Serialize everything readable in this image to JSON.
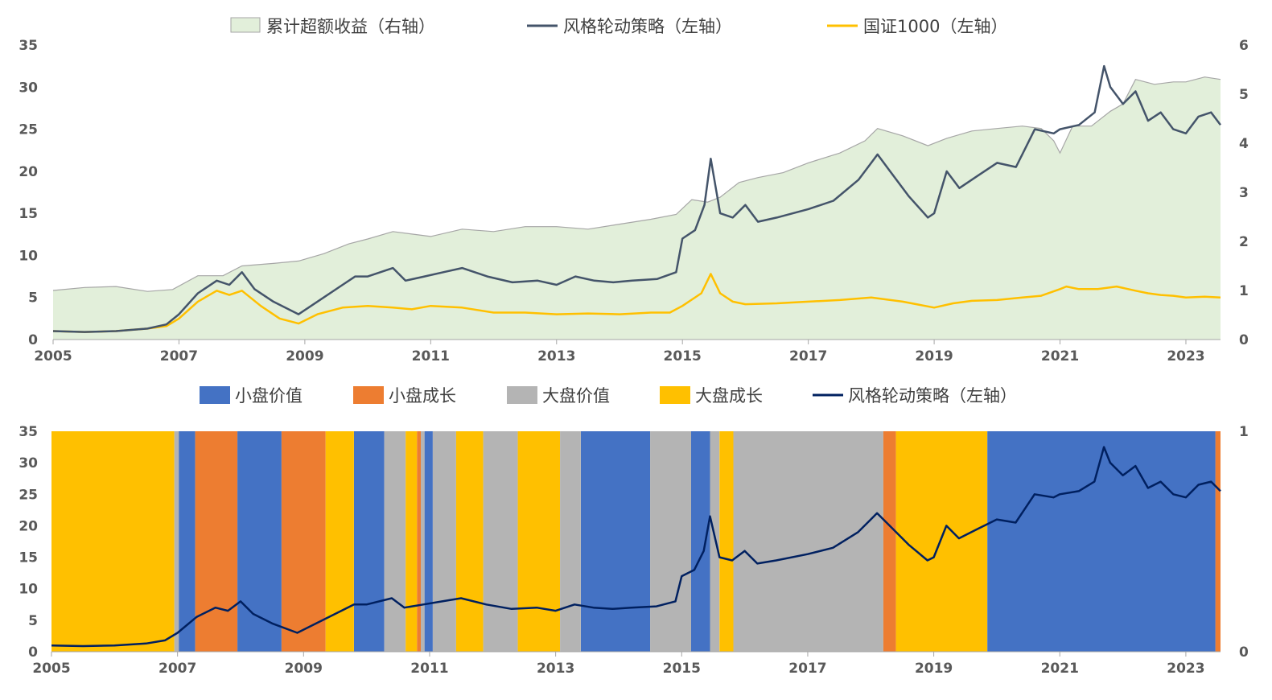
{
  "chart_data": [
    {
      "type": "line",
      "title": "",
      "xlabel": "",
      "ylabel": "",
      "legend_position": "top",
      "x_ticks": [
        "2005",
        "2007",
        "2009",
        "2011",
        "2013",
        "2015",
        "2017",
        "2019",
        "2021",
        "2023"
      ],
      "y_left_ticks": [
        "0",
        "5",
        "10",
        "15",
        "20",
        "25",
        "30",
        "35"
      ],
      "y_right_ticks": [
        "0",
        "1",
        "2",
        "3",
        "4",
        "5",
        "6"
      ],
      "ylim_left": [
        0,
        35
      ],
      "ylim_right": [
        0,
        6
      ],
      "xlim": [
        2005.0,
        2023.55
      ],
      "colors": {
        "excess": "#e2efda",
        "excess_line": "#a6a6a6",
        "strategy": "#44546a",
        "index": "#ffc000"
      },
      "series": [
        {
          "name": "累计超额收益（右轴）",
          "axis": "right",
          "x": [
            2005.0,
            2005.5,
            2006.0,
            2006.5,
            2006.9,
            2007.3,
            2007.7,
            2008.0,
            2008.5,
            2008.9,
            2009.3,
            2009.7,
            2010.0,
            2010.4,
            2010.7,
            2011.0,
            2011.5,
            2012.0,
            2012.5,
            2013.0,
            2013.5,
            2014.0,
            2014.5,
            2014.9,
            2015.15,
            2015.4,
            2015.6,
            2015.9,
            2016.2,
            2016.6,
            2017.0,
            2017.5,
            2017.9,
            2018.1,
            2018.5,
            2018.9,
            2019.2,
            2019.6,
            2020.0,
            2020.4,
            2020.7,
            2020.9,
            2021.0,
            2021.2,
            2021.5,
            2021.8,
            2022.0,
            2022.2,
            2022.5,
            2022.8,
            2023.0,
            2023.3,
            2023.55
          ],
          "y": [
            1.0,
            1.06,
            1.08,
            0.98,
            1.02,
            1.3,
            1.3,
            1.5,
            1.55,
            1.6,
            1.75,
            1.95,
            2.05,
            2.2,
            2.15,
            2.1,
            2.25,
            2.2,
            2.3,
            2.3,
            2.25,
            2.35,
            2.45,
            2.55,
            2.85,
            2.8,
            2.9,
            3.2,
            3.3,
            3.4,
            3.6,
            3.8,
            4.05,
            4.3,
            4.15,
            3.95,
            4.1,
            4.25,
            4.3,
            4.35,
            4.3,
            4.05,
            3.8,
            4.35,
            4.35,
            4.65,
            4.8,
            5.3,
            5.2,
            5.25,
            5.25,
            5.35,
            5.3
          ]
        },
        {
          "name": "风格轮动策略（左轴）",
          "axis": "left",
          "x": [
            2005.0,
            2005.5,
            2006.0,
            2006.5,
            2006.8,
            2007.0,
            2007.3,
            2007.6,
            2007.8,
            2008.0,
            2008.2,
            2008.5,
            2008.9,
            2009.2,
            2009.6,
            2009.8,
            2010.0,
            2010.4,
            2010.6,
            2010.9,
            2011.2,
            2011.5,
            2011.9,
            2012.3,
            2012.7,
            2013.0,
            2013.3,
            2013.6,
            2013.9,
            2014.2,
            2014.6,
            2014.9,
            2015.0,
            2015.2,
            2015.35,
            2015.45,
            2015.6,
            2015.8,
            2016.0,
            2016.2,
            2016.5,
            2017.0,
            2017.4,
            2017.8,
            2018.0,
            2018.1,
            2018.3,
            2018.6,
            2018.9,
            2019.0,
            2019.2,
            2019.4,
            2019.7,
            2020.0,
            2020.3,
            2020.6,
            2020.9,
            2021.0,
            2021.3,
            2021.55,
            2021.7,
            2021.8,
            2022.0,
            2022.2,
            2022.4,
            2022.6,
            2022.8,
            2023.0,
            2023.2,
            2023.4,
            2023.55
          ],
          "y": [
            1.0,
            0.9,
            1.0,
            1.3,
            1.8,
            3.0,
            5.5,
            7.0,
            6.5,
            8.0,
            6.0,
            4.5,
            3.0,
            4.5,
            6.5,
            7.5,
            7.5,
            8.5,
            7.0,
            7.5,
            8.0,
            8.5,
            7.5,
            6.8,
            7.0,
            6.5,
            7.5,
            7.0,
            6.8,
            7.0,
            7.2,
            8.0,
            12.0,
            13.0,
            16.0,
            21.5,
            15.0,
            14.5,
            16.0,
            14.0,
            14.5,
            15.5,
            16.5,
            19.0,
            21.0,
            22.0,
            20.0,
            17.0,
            14.5,
            15.0,
            20.0,
            18.0,
            19.5,
            21.0,
            20.5,
            25.0,
            24.5,
            25.0,
            25.5,
            27.0,
            32.5,
            30.0,
            28.0,
            29.5,
            26.0,
            27.0,
            25.0,
            24.5,
            26.5,
            27.0,
            25.5
          ]
        },
        {
          "name": "国证1000（左轴）",
          "axis": "left",
          "x": [
            2005.0,
            2005.5,
            2006.0,
            2006.5,
            2006.8,
            2007.0,
            2007.3,
            2007.6,
            2007.8,
            2008.0,
            2008.3,
            2008.6,
            2008.9,
            2009.2,
            2009.6,
            2010.0,
            2010.4,
            2010.7,
            2011.0,
            2011.5,
            2012.0,
            2012.5,
            2013.0,
            2013.5,
            2014.0,
            2014.5,
            2014.8,
            2015.0,
            2015.3,
            2015.45,
            2015.6,
            2015.8,
            2016.0,
            2016.5,
            2017.0,
            2017.5,
            2018.0,
            2018.5,
            2019.0,
            2019.3,
            2019.6,
            2020.0,
            2020.4,
            2020.7,
            2021.0,
            2021.1,
            2021.3,
            2021.6,
            2021.9,
            2022.2,
            2022.4,
            2022.6,
            2022.8,
            2023.0,
            2023.3,
            2023.55
          ],
          "y": [
            1.0,
            0.9,
            1.0,
            1.3,
            1.6,
            2.5,
            4.5,
            5.8,
            5.3,
            5.8,
            4.0,
            2.5,
            1.9,
            3.0,
            3.8,
            4.0,
            3.8,
            3.6,
            4.0,
            3.8,
            3.2,
            3.2,
            3.0,
            3.1,
            3.0,
            3.2,
            3.2,
            4.0,
            5.5,
            7.8,
            5.5,
            4.5,
            4.2,
            4.3,
            4.5,
            4.7,
            5.0,
            4.5,
            3.8,
            4.3,
            4.6,
            4.7,
            5.0,
            5.2,
            6.0,
            6.3,
            6.0,
            6.0,
            6.3,
            5.8,
            5.5,
            5.3,
            5.2,
            5.0,
            5.1,
            5.0
          ]
        }
      ]
    },
    {
      "type": "area",
      "title": "",
      "xlabel": "",
      "ylabel": "",
      "legend_position": "top",
      "x_ticks": [
        "2005",
        "2007",
        "2009",
        "2011",
        "2013",
        "2015",
        "2017",
        "2019",
        "2021",
        "2023"
      ],
      "y_left_ticks": [
        "0",
        "5",
        "10",
        "15",
        "20",
        "25",
        "30",
        "35"
      ],
      "y_right_ticks": [
        "0",
        "1"
      ],
      "ylim_left": [
        0,
        35
      ],
      "ylim_right": [
        0,
        1
      ],
      "xlim": [
        2005.0,
        2023.55
      ],
      "regime_legend": [
        {
          "name": "小盘价值",
          "color": "#4472c4"
        },
        {
          "name": "小盘成长",
          "color": "#ed7d31"
        },
        {
          "name": "大盘价值",
          "color": "#b4b4b4"
        },
        {
          "name": "大盘成长",
          "color": "#ffc000"
        }
      ],
      "regimes": [
        {
          "start": 2005.0,
          "end": 2006.95,
          "style": "大盘成长"
        },
        {
          "start": 2006.95,
          "end": 2007.02,
          "style": "大盘价值"
        },
        {
          "start": 2007.02,
          "end": 2007.28,
          "style": "小盘价值"
        },
        {
          "start": 2007.28,
          "end": 2007.95,
          "style": "小盘成长"
        },
        {
          "start": 2007.95,
          "end": 2008.65,
          "style": "小盘价值"
        },
        {
          "start": 2008.65,
          "end": 2009.35,
          "style": "小盘成长"
        },
        {
          "start": 2009.35,
          "end": 2009.8,
          "style": "大盘成长"
        },
        {
          "start": 2009.8,
          "end": 2010.28,
          "style": "小盘价值"
        },
        {
          "start": 2010.28,
          "end": 2010.62,
          "style": "大盘价值"
        },
        {
          "start": 2010.62,
          "end": 2010.8,
          "style": "大盘成长"
        },
        {
          "start": 2010.8,
          "end": 2010.86,
          "style": "小盘成长"
        },
        {
          "start": 2010.86,
          "end": 2010.92,
          "style": "大盘价值"
        },
        {
          "start": 2010.92,
          "end": 2011.05,
          "style": "小盘价值"
        },
        {
          "start": 2011.05,
          "end": 2011.42,
          "style": "大盘价值"
        },
        {
          "start": 2011.42,
          "end": 2011.85,
          "style": "大盘成长"
        },
        {
          "start": 2011.85,
          "end": 2012.4,
          "style": "大盘价值"
        },
        {
          "start": 2012.4,
          "end": 2013.07,
          "style": "大盘成长"
        },
        {
          "start": 2013.07,
          "end": 2013.4,
          "style": "大盘价值"
        },
        {
          "start": 2013.4,
          "end": 2014.5,
          "style": "小盘价值"
        },
        {
          "start": 2014.5,
          "end": 2015.15,
          "style": "大盘价值"
        },
        {
          "start": 2015.15,
          "end": 2015.45,
          "style": "小盘价值"
        },
        {
          "start": 2015.45,
          "end": 2015.6,
          "style": "大盘价值"
        },
        {
          "start": 2015.6,
          "end": 2015.82,
          "style": "大盘成长"
        },
        {
          "start": 2015.82,
          "end": 2018.2,
          "style": "大盘价值"
        },
        {
          "start": 2018.2,
          "end": 2018.4,
          "style": "小盘成长"
        },
        {
          "start": 2018.4,
          "end": 2019.85,
          "style": "大盘成长"
        },
        {
          "start": 2019.85,
          "end": 2023.47,
          "style": "小盘价值"
        },
        {
          "start": 2023.47,
          "end": 2023.55,
          "style": "小盘成长"
        }
      ],
      "series": [
        {
          "name": "风格轮动策略（左轴）",
          "axis": "left",
          "color": "#002060"
        }
      ]
    }
  ]
}
